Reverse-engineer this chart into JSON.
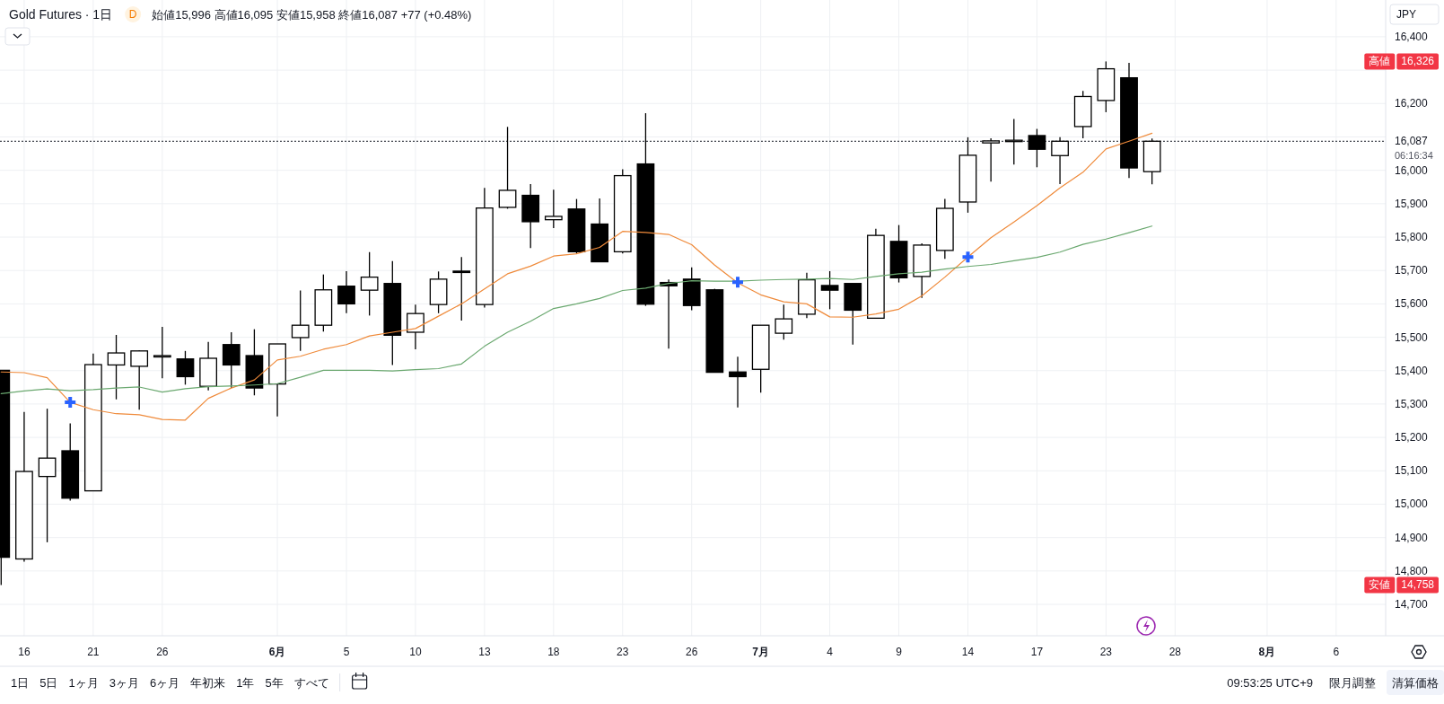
{
  "chart_data": {
    "type": "candlestick",
    "title": "Gold Futures · 1日",
    "subtitle": "始値15,996 高値16,095 安値15,958 終値16,087 +77 (+0.48%)",
    "categories": [
      null,
      "16",
      null,
      null,
      "21",
      null,
      null,
      "26",
      null,
      null,
      null,
      null,
      "6月",
      null,
      null,
      "5",
      null,
      null,
      "10",
      null,
      null,
      "13",
      null,
      null,
      "18",
      null,
      null,
      "23",
      null,
      null,
      "26",
      null,
      null,
      "7月",
      null,
      null,
      "4",
      null,
      null,
      "9",
      null,
      null,
      "14",
      null,
      null,
      "17",
      null,
      null,
      "23",
      null,
      null,
      "28",
      null,
      null,
      null,
      "8月",
      null,
      null,
      "6",
      null,
      null
    ],
    "series": [
      {
        "type": "candlestick",
        "color": "#000000",
        "ohlc": [
          [
            15401,
            15401,
            14758,
            14841
          ],
          [
            14836,
            15276,
            14828,
            15098
          ],
          [
            15083,
            15286,
            14886,
            15138
          ],
          [
            15160,
            15242,
            15011,
            15018
          ],
          [
            15040,
            15451,
            15040,
            15418
          ],
          [
            15417,
            15507,
            15314,
            15453
          ],
          [
            15413,
            15461,
            15283,
            15459
          ],
          [
            15444,
            15531,
            15377,
            15445
          ],
          [
            15435,
            15459,
            15358,
            15382
          ],
          [
            15353,
            15486,
            15341,
            15437
          ],
          [
            15478,
            15515,
            15348,
            15417
          ],
          [
            15445,
            15524,
            15326,
            15348
          ],
          [
            15360,
            15480,
            15263,
            15480
          ],
          [
            15499,
            15640,
            15459,
            15536
          ],
          [
            15536,
            15688,
            15517,
            15642
          ],
          [
            15653,
            15698,
            15572,
            15600
          ],
          [
            15641,
            15755,
            15565,
            15680
          ],
          [
            15661,
            15728,
            15417,
            15506
          ],
          [
            15515,
            15598,
            15464,
            15571
          ],
          [
            15598,
            15697,
            15572,
            15674
          ],
          [
            15698,
            15740,
            15550,
            15694
          ],
          [
            15598,
            15947,
            15589,
            15887
          ],
          [
            15889,
            16130,
            15885,
            15940
          ],
          [
            15925,
            15959,
            15767,
            15846
          ],
          [
            15852,
            15942,
            15827,
            15862
          ],
          [
            15884,
            15914,
            15751,
            15756
          ],
          [
            15839,
            15916,
            15726,
            15726
          ],
          [
            15756,
            16003,
            15751,
            15984
          ],
          [
            16019,
            16171,
            15594,
            15599
          ],
          [
            15664,
            15673,
            15466,
            15654
          ],
          [
            15674,
            15709,
            15581,
            15595
          ],
          [
            15642,
            15645,
            15395,
            15395
          ],
          [
            15396,
            15442,
            15290,
            15382
          ],
          [
            15404,
            15536,
            15334,
            15536
          ],
          [
            15512,
            15598,
            15493,
            15555
          ],
          [
            15569,
            15693,
            15557,
            15672
          ],
          [
            15655,
            15698,
            15584,
            15641
          ],
          [
            15661,
            15661,
            15478,
            15581
          ],
          [
            15557,
            15825,
            15555,
            15805
          ],
          [
            15787,
            15836,
            15664,
            15678
          ],
          [
            15682,
            15781,
            15618,
            15776
          ],
          [
            15760,
            15914,
            15735,
            15886
          ],
          [
            15905,
            16099,
            15873,
            16045
          ],
          [
            16082,
            16096,
            15966,
            16088
          ],
          [
            16088,
            16154,
            16017,
            16090
          ],
          [
            16104,
            16124,
            16009,
            16063
          ],
          [
            16044,
            16099,
            15959,
            16087
          ],
          [
            16131,
            16238,
            16096,
            16221
          ],
          [
            16209,
            16326,
            16174,
            16304
          ],
          [
            16277,
            16322,
            15977,
            16007
          ],
          [
            15996,
            16095,
            15958,
            16087
          ],
          null,
          null,
          null,
          null,
          null,
          null,
          null,
          null,
          null,
          null
        ]
      },
      {
        "type": "line",
        "color": "#ef8a3a",
        "values": [
          15396,
          15394,
          15379,
          15305,
          15283,
          15271,
          15268,
          15254,
          15252,
          15317,
          15348,
          15372,
          15432,
          15443,
          15464,
          15478,
          15504,
          15515,
          15526,
          15563,
          15600,
          15645,
          15690,
          15713,
          15743,
          15750,
          15769,
          15817,
          15814,
          15808,
          15777,
          15716,
          15663,
          15627,
          15606,
          15600,
          15561,
          15560,
          15570,
          15584,
          15624,
          15680,
          15740,
          15798,
          15845,
          15894,
          15947,
          15994,
          16064,
          16087,
          16111,
          null,
          null,
          null,
          null,
          null,
          null,
          null,
          null,
          null,
          null
        ]
      },
      {
        "type": "line",
        "color": "#6aa86f",
        "values": [
          15331,
          15339,
          15345,
          15340,
          15343,
          15348,
          15351,
          15336,
          15346,
          15352,
          15354,
          15357,
          15361,
          15380,
          15401,
          15401,
          15401,
          15399,
          15403,
          15406,
          15420,
          15473,
          15515,
          15548,
          15586,
          15600,
          15616,
          15640,
          15647,
          15661,
          15669,
          15668,
          15668,
          15671,
          15673,
          15674,
          15676,
          15673,
          15682,
          15690,
          15695,
          15704,
          15712,
          15718,
          15729,
          15739,
          15755,
          15778,
          15794,
          15813,
          15833,
          null,
          null,
          null,
          null,
          null,
          null,
          null,
          null,
          null,
          null
        ]
      },
      {
        "type": "scatter",
        "marker": "cross",
        "color": "#2962ff",
        "values": [
          null,
          null,
          null,
          15305,
          null,
          null,
          null,
          null,
          null,
          null,
          null,
          null,
          null,
          null,
          null,
          null,
          null,
          null,
          null,
          null,
          null,
          null,
          null,
          null,
          null,
          null,
          null,
          null,
          null,
          null,
          null,
          null,
          15665,
          null,
          null,
          null,
          null,
          null,
          null,
          null,
          null,
          null,
          15740,
          null,
          null,
          null,
          null,
          null,
          null,
          null,
          null,
          null,
          null,
          null,
          null,
          null,
          null,
          null,
          null,
          null,
          null
        ]
      }
    ],
    "ylim": [
      14606,
      16510
    ],
    "yticks": [
      {
        "value": 14700,
        "label": "14,700"
      },
      {
        "value": 14800,
        "label": "14,800"
      },
      {
        "value": 14900,
        "label": "14,900"
      },
      {
        "value": 15000,
        "label": "15,000"
      },
      {
        "value": 15100,
        "label": "15,100"
      },
      {
        "value": 15200,
        "label": "15,200"
      },
      {
        "value": 15300,
        "label": "15,300"
      },
      {
        "value": 15400,
        "label": "15,400"
      },
      {
        "value": 15500,
        "label": "15,500"
      },
      {
        "value": 15600,
        "label": "15,600"
      },
      {
        "value": 15700,
        "label": "15,700"
      },
      {
        "value": 15800,
        "label": "15,800"
      },
      {
        "value": 15900,
        "label": "15,900"
      },
      {
        "value": 16000,
        "label": "16,000"
      },
      {
        "value": 16100,
        "label": null
      },
      {
        "value": 16200,
        "label": "16,200"
      },
      {
        "value": 16300,
        "label": null
      },
      {
        "value": 16400,
        "label": "16,400"
      }
    ],
    "grid": true,
    "ref_lines": [
      {
        "axis": "y",
        "value": 16087,
        "label": "16,087",
        "line_style": "dotted",
        "color": "#131722"
      }
    ],
    "annotations": [
      "D",
      "JPY",
      "06:16:34",
      "1日",
      "5日",
      "1ヶ月",
      "3ヶ月",
      "6ヶ月",
      "年初来",
      "1年",
      "5年",
      "すべて",
      "09:53:25 UTC+9",
      "限月調整",
      "清算価格",
      "高値",
      "16,326",
      "安値",
      "14,758"
    ]
  }
}
